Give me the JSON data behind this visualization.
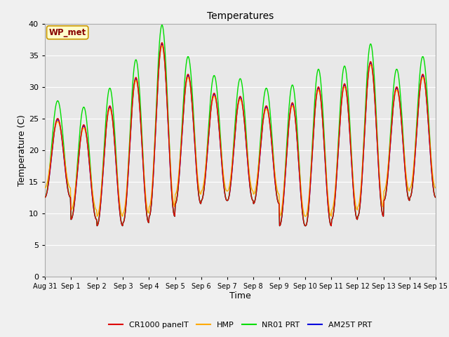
{
  "title": "Temperatures",
  "xlabel": "Time",
  "ylabel": "Temperature (C)",
  "ylim": [
    0,
    40
  ],
  "yticks": [
    0,
    5,
    10,
    15,
    20,
    25,
    30,
    35,
    40
  ],
  "x_labels": [
    "Aug 31",
    "Sep 1",
    "Sep 2",
    "Sep 3",
    "Sep 4",
    "Sep 5",
    "Sep 6",
    "Sep 7",
    "Sep 8",
    "Sep 9",
    "Sep 10",
    "Sep 11",
    "Sep 12",
    "Sep 13",
    "Sep 14",
    "Sep 15"
  ],
  "series_colors": {
    "CR1000 panelT": "#dd0000",
    "HMP": "#ffaa00",
    "NR01 PRT": "#00dd00",
    "AM25T PRT": "#0000dd"
  },
  "wp_met_label": "WP_met",
  "fig_bg_color": "#f0f0f0",
  "plot_bg_color": "#e8e8e8",
  "grid_color": "#ffffff",
  "day_mins_base": [
    12.5,
    9.0,
    8.0,
    8.5,
    9.5,
    11.5,
    12.0,
    12.0,
    11.5,
    8.0,
    8.0,
    9.0,
    9.5,
    12.0,
    12.5
  ],
  "day_maxs_base": [
    25.0,
    24.0,
    27.0,
    31.5,
    37.0,
    32.0,
    29.0,
    28.5,
    27.0,
    27.5,
    30.0,
    30.5,
    34.0,
    30.0,
    32.0
  ],
  "nr01_extra": 2.5,
  "hmp_night_extra": 1.5
}
